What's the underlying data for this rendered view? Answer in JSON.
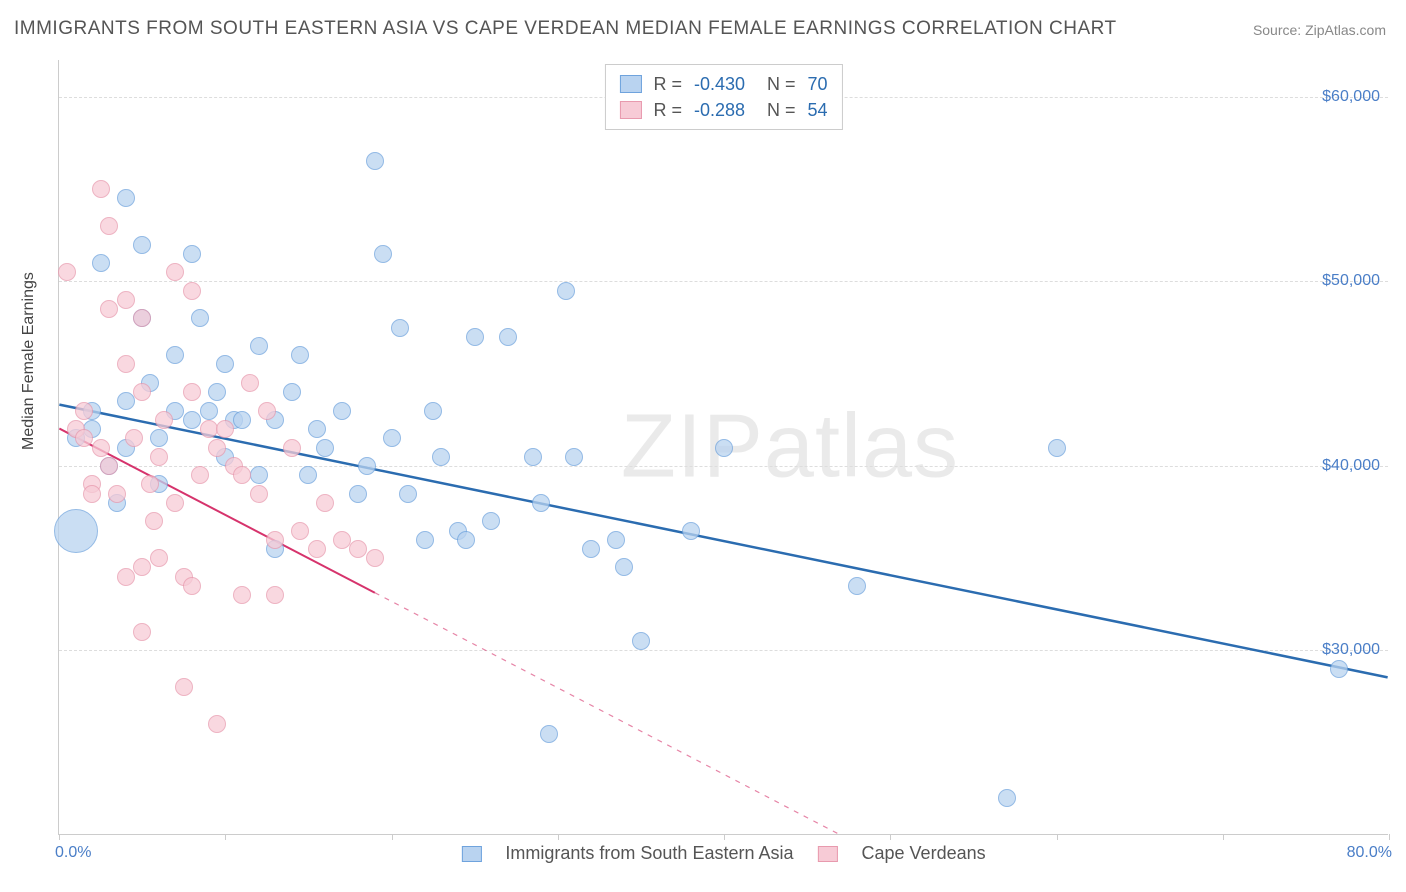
{
  "title": "IMMIGRANTS FROM SOUTH EASTERN ASIA VS CAPE VERDEAN MEDIAN FEMALE EARNINGS CORRELATION CHART",
  "source_label": "Source:",
  "source_name": "ZipAtlas.com",
  "watermark": "ZIPatlas",
  "y_axis_label": "Median Female Earnings",
  "chart": {
    "type": "scatter",
    "xlim": [
      0,
      80
    ],
    "ylim": [
      20000,
      62000
    ],
    "x_ticks": [
      0,
      10,
      20,
      30,
      40,
      50,
      60,
      70,
      80
    ],
    "x_tick_labels": {
      "0": "0.0%",
      "80": "80.0%"
    },
    "y_ticks": [
      30000,
      40000,
      50000,
      60000
    ],
    "y_tick_labels": [
      "$30,000",
      "$40,000",
      "$50,000",
      "$60,000"
    ],
    "background_color": "#ffffff",
    "grid_color": "#dddddd",
    "axis_color": "#cccccc",
    "tick_label_color": "#4a7ec7",
    "series": [
      {
        "name": "Immigrants from South Eastern Asia",
        "color_fill": "#b9d3f0",
        "color_stroke": "#6fa3dd",
        "R": "-0.430",
        "N": "70",
        "marker_radius": 9,
        "trend": {
          "x1": 0,
          "y1": 43300,
          "x2": 80,
          "y2": 28500,
          "solid_until_x": 80,
          "color": "#2b6cb0",
          "width": 2.5
        },
        "points": [
          [
            1,
            41500
          ],
          [
            1,
            36500,
            22
          ],
          [
            2,
            42000
          ],
          [
            2,
            43000
          ],
          [
            2.5,
            51000
          ],
          [
            3,
            40000
          ],
          [
            3.5,
            38000
          ],
          [
            4,
            54500
          ],
          [
            4,
            43500
          ],
          [
            4,
            41000
          ],
          [
            5,
            52000
          ],
          [
            5,
            48000
          ],
          [
            5.5,
            44500
          ],
          [
            6,
            41500
          ],
          [
            6,
            39000
          ],
          [
            7,
            43000
          ],
          [
            7,
            46000
          ],
          [
            8,
            51500
          ],
          [
            8,
            42500
          ],
          [
            8.5,
            48000
          ],
          [
            9,
            43000
          ],
          [
            9.5,
            44000
          ],
          [
            10,
            45500
          ],
          [
            10,
            40500
          ],
          [
            10.5,
            42500
          ],
          [
            11,
            42500
          ],
          [
            12,
            46500
          ],
          [
            12,
            39500
          ],
          [
            13,
            42500
          ],
          [
            13,
            35500
          ],
          [
            14,
            44000
          ],
          [
            14.5,
            46000
          ],
          [
            15,
            39500
          ],
          [
            15.5,
            42000
          ],
          [
            16,
            41000
          ],
          [
            17,
            43000
          ],
          [
            18,
            38500
          ],
          [
            18.5,
            40000
          ],
          [
            19,
            56500
          ],
          [
            19.5,
            51500
          ],
          [
            20,
            41500
          ],
          [
            20.5,
            47500
          ],
          [
            21,
            38500
          ],
          [
            22,
            36000
          ],
          [
            22.5,
            43000
          ],
          [
            23,
            40500
          ],
          [
            24,
            36500
          ],
          [
            24.5,
            36000
          ],
          [
            25,
            47000
          ],
          [
            26,
            37000
          ],
          [
            27,
            47000
          ],
          [
            28.5,
            40500
          ],
          [
            29,
            38000
          ],
          [
            29.5,
            25500
          ],
          [
            30.5,
            49500
          ],
          [
            31,
            40500
          ],
          [
            32,
            35500
          ],
          [
            33.5,
            36000
          ],
          [
            34,
            34500
          ],
          [
            35,
            30500
          ],
          [
            38,
            36500
          ],
          [
            40,
            41000
          ],
          [
            48,
            33500
          ],
          [
            57,
            22000
          ],
          [
            60,
            41000
          ],
          [
            77,
            29000
          ]
        ]
      },
      {
        "name": "Cape Verdeans",
        "color_fill": "#f7cbd6",
        "color_stroke": "#e89aae",
        "R": "-0.288",
        "N": "54",
        "marker_radius": 9,
        "trend": {
          "x1": 0,
          "y1": 42000,
          "x2": 48,
          "y2": 19500,
          "solid_until_x": 19,
          "color": "#d6336c",
          "width": 2
        },
        "points": [
          [
            0.5,
            50500
          ],
          [
            1,
            42000
          ],
          [
            1.5,
            41500
          ],
          [
            1.5,
            43000
          ],
          [
            2,
            39000
          ],
          [
            2,
            38500
          ],
          [
            2.5,
            55000
          ],
          [
            2.5,
            41000
          ],
          [
            3,
            48500
          ],
          [
            3,
            40000
          ],
          [
            3,
            53000
          ],
          [
            3.5,
            38500
          ],
          [
            4,
            49000
          ],
          [
            4,
            34000
          ],
          [
            4,
            45500
          ],
          [
            4.5,
            41500
          ],
          [
            5,
            48000
          ],
          [
            5,
            34500
          ],
          [
            5,
            44000
          ],
          [
            5,
            31000
          ],
          [
            5.5,
            39000
          ],
          [
            5.7,
            37000
          ],
          [
            6,
            40500
          ],
          [
            6,
            35000
          ],
          [
            6.3,
            42500
          ],
          [
            7,
            50500
          ],
          [
            7,
            38000
          ],
          [
            7.5,
            34000
          ],
          [
            7.5,
            28000
          ],
          [
            8,
            49500
          ],
          [
            8,
            44000
          ],
          [
            8,
            33500
          ],
          [
            8.5,
            39500
          ],
          [
            9,
            42000
          ],
          [
            9.5,
            41000
          ],
          [
            9.5,
            26000
          ],
          [
            10,
            42000
          ],
          [
            10.5,
            40000
          ],
          [
            11,
            39500
          ],
          [
            11,
            33000
          ],
          [
            11.5,
            44500
          ],
          [
            12,
            38500
          ],
          [
            12.5,
            43000
          ],
          [
            13,
            36000
          ],
          [
            13,
            33000
          ],
          [
            14,
            41000
          ],
          [
            14.5,
            36500
          ],
          [
            15.5,
            35500
          ],
          [
            16,
            38000
          ],
          [
            17,
            36000
          ],
          [
            18,
            35500
          ],
          [
            19,
            35000
          ]
        ]
      }
    ]
  },
  "legend_bottom": [
    {
      "swatch_fill": "#b9d3f0",
      "swatch_stroke": "#6fa3dd",
      "label": "Immigrants from South Eastern Asia"
    },
    {
      "swatch_fill": "#f7cbd6",
      "swatch_stroke": "#e89aae",
      "label": "Cape Verdeans"
    }
  ]
}
